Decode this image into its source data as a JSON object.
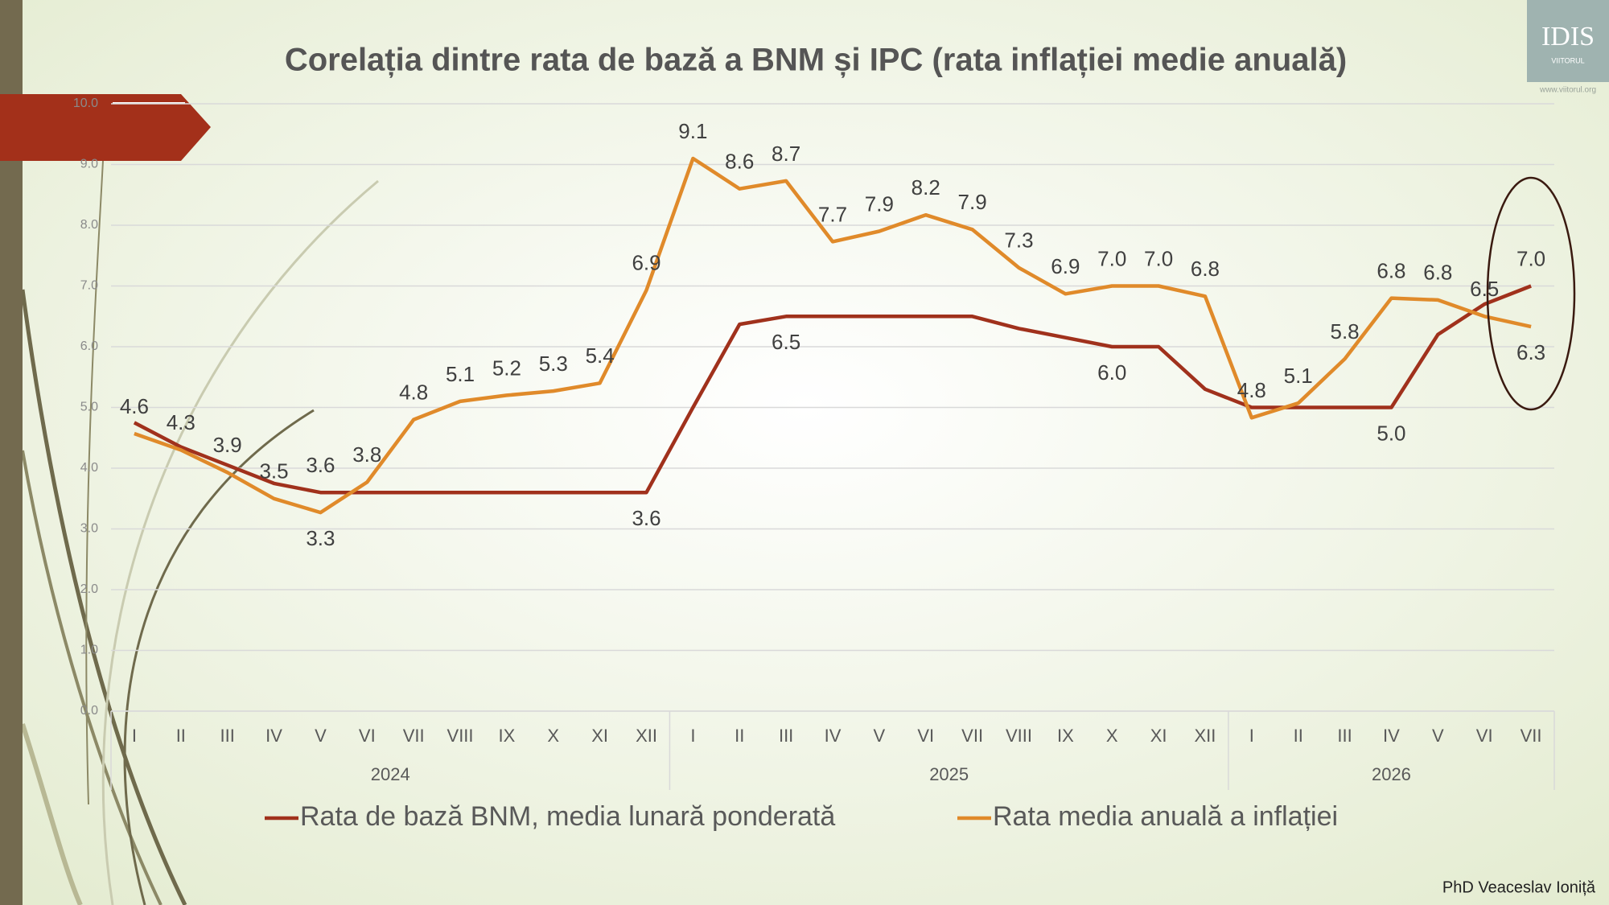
{
  "chart_data": {
    "type": "line",
    "title": "Corelația dintre rata de bază a BNM și IPC (rata inflației medie anuală)",
    "categories": [
      "I",
      "II",
      "III",
      "IV",
      "V",
      "VI",
      "VII",
      "VIII",
      "IX",
      "X",
      "XI",
      "XII",
      "I",
      "II",
      "III",
      "IV",
      "V",
      "VI",
      "VII",
      "VIII",
      "IX",
      "X",
      "XI",
      "XII",
      "I",
      "II",
      "III",
      "IV",
      "V",
      "VI",
      "VII"
    ],
    "groups": [
      "2024",
      "2025",
      "2026"
    ],
    "series": [
      {
        "name": "Rata de bază BNM, media lunară ponderată",
        "color": "#a0311c",
        "values": [
          4.75,
          4.35,
          4.05,
          3.75,
          3.6,
          3.6,
          3.6,
          3.6,
          3.6,
          3.6,
          3.6,
          3.6,
          5.0,
          6.37,
          6.5,
          6.5,
          6.5,
          6.5,
          6.5,
          6.3,
          6.15,
          6.0,
          6.0,
          5.3,
          5.0,
          5.0,
          5.0,
          5.0,
          6.2,
          6.7,
          7.0
        ],
        "value_labels": [
          null,
          null,
          null,
          null,
          "3.6",
          null,
          null,
          null,
          null,
          null,
          null,
          "3.6",
          null,
          null,
          "6.5",
          null,
          null,
          null,
          null,
          null,
          null,
          "6.0",
          null,
          null,
          null,
          null,
          null,
          "5.0",
          null,
          null,
          "7.0"
        ]
      },
      {
        "name": "Rata media anuală a inflației",
        "color": "#e08a2a",
        "values": [
          4.57,
          4.3,
          3.93,
          3.5,
          3.27,
          3.77,
          4.8,
          5.1,
          5.2,
          5.27,
          5.4,
          6.93,
          9.1,
          8.6,
          8.73,
          7.73,
          7.9,
          8.17,
          7.93,
          7.3,
          6.87,
          7.0,
          7.0,
          6.83,
          4.83,
          5.07,
          5.8,
          6.8,
          6.77,
          6.5,
          6.33
        ],
        "value_labels": [
          "4.6",
          "4.3",
          "3.9",
          "3.5",
          "3.3",
          "3.8",
          "4.8",
          "5.1",
          "5.2",
          "5.3",
          "5.4",
          "6.9",
          "9.1",
          "8.6",
          "8.7",
          "7.7",
          "7.9",
          "8.2",
          "7.9",
          "7.3",
          "6.9",
          "7.0",
          "7.0",
          "6.8",
          "4.8",
          "5.1",
          "5.8",
          "6.8",
          "6.8",
          "6.5",
          "6.3"
        ]
      }
    ],
    "ylim": [
      0,
      10
    ],
    "yticks": [
      {
        "value": 0,
        "label": "0.0"
      },
      {
        "value": 1,
        "label": "1.0"
      },
      {
        "value": 2,
        "label": "2.0"
      },
      {
        "value": 3,
        "label": "3.0"
      },
      {
        "value": 4,
        "label": "4.0"
      },
      {
        "value": 5,
        "label": "5.0"
      },
      {
        "value": 6,
        "label": "6.0"
      },
      {
        "value": 7,
        "label": "7.0"
      },
      {
        "value": 8,
        "label": "8.0"
      },
      {
        "value": 9,
        "label": "9.0"
      },
      {
        "value": 10,
        "label": "10.0"
      }
    ],
    "grid": true,
    "legend": "bottom"
  },
  "logo": {
    "name": "IDIS",
    "sub": "VIITORUL",
    "url": "www.viitorul.org"
  },
  "author": "PhD Veaceslav Ioniță"
}
